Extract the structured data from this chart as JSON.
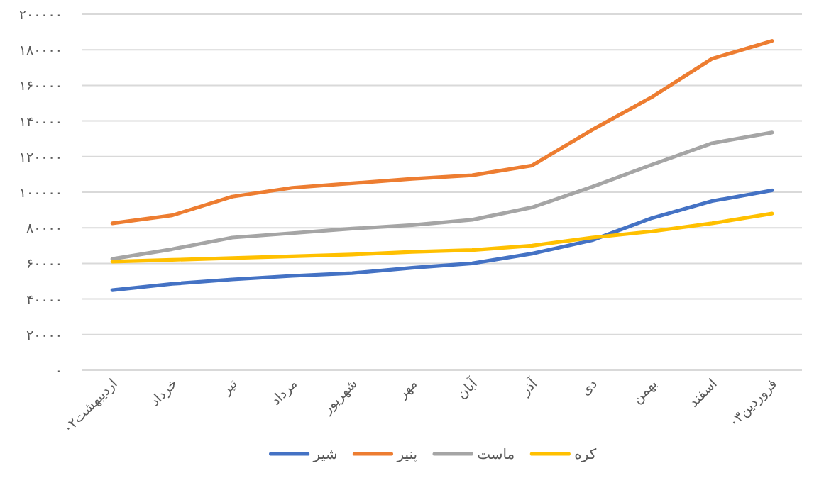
{
  "chart_data": {
    "type": "line",
    "categories": [
      "اردیبهشت۰۲",
      "خرداد",
      "تیر",
      "مرداد",
      "شهریور",
      "مهر",
      "آبان",
      "آذر",
      "دی",
      "بهمن",
      "اسفند",
      "فروردین۰۳"
    ],
    "series": [
      {
        "name": "شیر",
        "color": "#4472c4",
        "values": [
          45000,
          48500,
          51000,
          53000,
          54500,
          57500,
          60000,
          65500,
          73000,
          85500,
          95000,
          101000
        ]
      },
      {
        "name": "پنیر",
        "color": "#ed7d31",
        "values": [
          82500,
          87000,
          97500,
          102500,
          105000,
          107500,
          109500,
          115000,
          135000,
          153500,
          175000,
          185000
        ]
      },
      {
        "name": "ماست",
        "color": "#a5a5a5",
        "values": [
          62500,
          68000,
          74500,
          77000,
          79500,
          81500,
          84500,
          91500,
          103000,
          115500,
          127500,
          133500
        ]
      },
      {
        "name": "کره",
        "color": "#ffc000",
        "values": [
          61000,
          62000,
          63000,
          64000,
          65000,
          66500,
          67500,
          70000,
          74500,
          78000,
          82500,
          88000
        ]
      }
    ],
    "ylim": [
      0,
      200000
    ],
    "yticks": [
      {
        "value": 0,
        "label": "۰"
      },
      {
        "value": 20000,
        "label": "۲۰۰۰۰"
      },
      {
        "value": 40000,
        "label": "۴۰۰۰۰"
      },
      {
        "value": 60000,
        "label": "۶۰۰۰۰"
      },
      {
        "value": 80000,
        "label": "۸۰۰۰۰"
      },
      {
        "value": 100000,
        "label": "۱۰۰۰۰۰"
      },
      {
        "value": 120000,
        "label": "۱۲۰۰۰۰"
      },
      {
        "value": 140000,
        "label": "۱۴۰۰۰۰"
      },
      {
        "value": 160000,
        "label": "۱۶۰۰۰۰"
      },
      {
        "value": 180000,
        "label": "۱۸۰۰۰۰"
      },
      {
        "value": 200000,
        "label": "۲۰۰۰۰۰"
      }
    ],
    "grid": "y",
    "legend": "bottom",
    "line_style": "solid"
  }
}
